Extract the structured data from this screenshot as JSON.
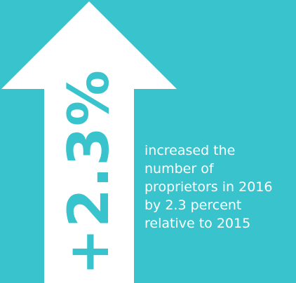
{
  "colors": {
    "background": "#38c3cd",
    "arrow": "#ffffff",
    "stat_text": "#38c3cd",
    "caption_text": "#ffffff"
  },
  "graphic": {
    "icon": "up-arrow-icon",
    "stat_value": "+2.3%"
  },
  "caption": {
    "lines": [
      "increased the",
      "number of",
      "proprietors in 2016",
      "by 2.3 percent",
      "relative to 2015"
    ]
  }
}
